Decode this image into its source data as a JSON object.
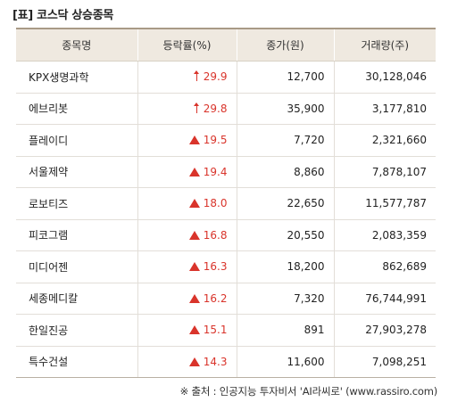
{
  "title": "[표] 코스닥 상승종목",
  "table": {
    "headers": [
      "종목명",
      "등락률(%)",
      "종가(원)",
      "거래량(주)"
    ],
    "rows": [
      {
        "name": "KPX생명과학",
        "arrow": "up-arrow",
        "rate": "29.9",
        "price": "12,700",
        "volume": "30,128,046"
      },
      {
        "name": "에브리봇",
        "arrow": "up-arrow",
        "rate": "29.8",
        "price": "35,900",
        "volume": "3,177,810"
      },
      {
        "name": "플레이디",
        "arrow": "triangle-up",
        "rate": "19.5",
        "price": "7,720",
        "volume": "2,321,660"
      },
      {
        "name": "서울제약",
        "arrow": "triangle-up",
        "rate": "19.4",
        "price": "8,860",
        "volume": "7,878,107"
      },
      {
        "name": "로보티즈",
        "arrow": "triangle-up",
        "rate": "18.0",
        "price": "22,650",
        "volume": "11,577,787"
      },
      {
        "name": "피코그램",
        "arrow": "triangle-up",
        "rate": "16.8",
        "price": "20,550",
        "volume": "2,083,359"
      },
      {
        "name": "미디어젠",
        "arrow": "triangle-up",
        "rate": "16.3",
        "price": "18,200",
        "volume": "862,689"
      },
      {
        "name": "세종메디칼",
        "arrow": "triangle-up",
        "rate": "16.2",
        "price": "7,320",
        "volume": "76,744,991"
      },
      {
        "name": "한일진공",
        "arrow": "triangle-up",
        "rate": "15.1",
        "price": "891",
        "volume": "27,903,278"
      },
      {
        "name": "특수건설",
        "arrow": "triangle-up",
        "rate": "14.3",
        "price": "11,600",
        "volume": "7,098,251"
      }
    ]
  },
  "source": "※ 출처 : 인공지능 투자비서 'AI라씨로' (www.rassiro.com)",
  "colors": {
    "rise": "#d9342b",
    "header_bg": "#efe9e0",
    "header_rule": "#a89a86"
  }
}
